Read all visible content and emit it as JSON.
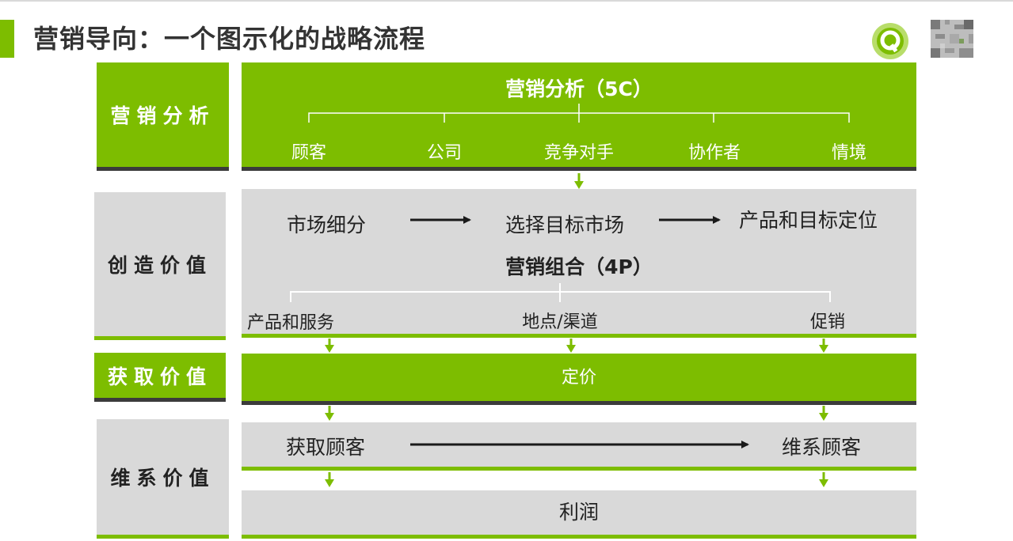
{
  "title": "营销导向：一个图示化的战略流程",
  "rows": {
    "analysis": {
      "label": "营销分析",
      "heading": "营销分析（5C）",
      "items": [
        "顾客",
        "公司",
        "竞争对手",
        "协作者",
        "情境"
      ]
    },
    "create": {
      "label": "创造价值",
      "steps": [
        "市场细分",
        "选择目标市场",
        "产品和目标定位"
      ],
      "heading": "营销组合（4P）",
      "items": [
        "产品和服务",
        "地点/渠道",
        "促销"
      ]
    },
    "capture": {
      "label": "获取价值",
      "content": "定价"
    },
    "sustain": {
      "label": "维系价值",
      "from": "获取顾客",
      "to": "维系顾客",
      "result": "利润"
    }
  },
  "colors": {
    "accent_green": "#7dbd00",
    "panel_gray": "#d9d9d9",
    "shadow_dark": "#3b3b3b",
    "arrow_dark": "#1a1a1a"
  },
  "icons": [
    "logo-q-icon",
    "qr-code-icon",
    "down-arrow-icon",
    "right-arrow-icon"
  ]
}
